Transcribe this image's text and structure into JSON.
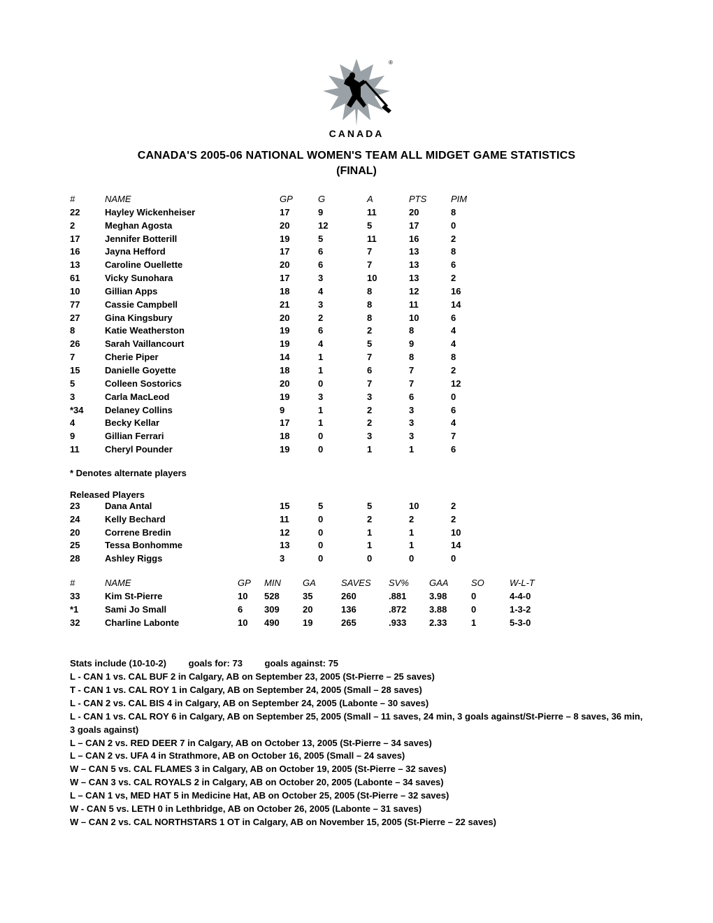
{
  "logo": {
    "maple_color": "#9aa2a7",
    "player_color": "#000000",
    "text": "CANADA",
    "text_color": "#000000"
  },
  "title_line1": "CANADA'S 2005-06 NATIONAL WOMEN'S TEAM ALL MIDGET GAME STATISTICS",
  "title_line2": "(FINAL)",
  "skater_header": {
    "num": "#",
    "name": "NAME",
    "gp": "GP",
    "g": "G",
    "a": "A",
    "pts": "PTS",
    "pim": "PIM"
  },
  "skaters": [
    {
      "num": "22",
      "name": "Hayley Wickenheiser",
      "gp": "17",
      "g": "9",
      "a": "11",
      "pts": "20",
      "pim": "8"
    },
    {
      "num": "2",
      "name": "Meghan Agosta",
      "gp": "20",
      "g": "12",
      "a": "5",
      "pts": "17",
      "pim": "0"
    },
    {
      "num": "17",
      "name": "Jennifer Botterill",
      "gp": "19",
      "g": "5",
      "a": "11",
      "pts": "16",
      "pim": "2"
    },
    {
      "num": "16",
      "name": "Jayna Hefford",
      "gp": "17",
      "g": "6",
      "a": "7",
      "pts": "13",
      "pim": "8"
    },
    {
      "num": "13",
      "name": "Caroline Ouellette",
      "gp": "20",
      "g": "6",
      "a": "7",
      "pts": "13",
      "pim": "6"
    },
    {
      "num": "61",
      "name": "Vicky Sunohara",
      "gp": "17",
      "g": "3",
      "a": "10",
      "pts": "13",
      "pim": "2"
    },
    {
      "num": "10",
      "name": "Gillian Apps",
      "gp": "18",
      "g": "4",
      "a": "8",
      "pts": "12",
      "pim": "16"
    },
    {
      "num": "77",
      "name": "Cassie Campbell",
      "gp": "21",
      "g": "3",
      "a": "8",
      "pts": "11",
      "pim": "14"
    },
    {
      "num": "27",
      "name": "Gina Kingsbury",
      "gp": "20",
      "g": "2",
      "a": "8",
      "pts": "10",
      "pim": "6"
    },
    {
      "num": "8",
      "name": "Katie Weatherston",
      "gp": "19",
      "g": "6",
      "a": "2",
      "pts": "8",
      "pim": "4"
    },
    {
      "num": "26",
      "name": "Sarah Vaillancourt",
      "gp": "19",
      "g": "4",
      "a": "5",
      "pts": "9",
      "pim": "4"
    },
    {
      "num": "7",
      "name": "Cherie Piper",
      "gp": "14",
      "g": "1",
      "a": "7",
      "pts": "8",
      "pim": "8"
    },
    {
      "num": "15",
      "name": "Danielle Goyette",
      "gp": "18",
      "g": "1",
      "a": "6",
      "pts": "7",
      "pim": "2"
    },
    {
      "num": "5",
      "name": "Colleen Sostorics",
      "gp": "20",
      "g": "0",
      "a": "7",
      "pts": "7",
      "pim": "12"
    },
    {
      "num": "3",
      "name": "Carla MacLeod",
      "gp": "19",
      "g": "3",
      "a": "3",
      "pts": "6",
      "pim": "0"
    },
    {
      "num": "*34",
      "name": "Delaney Collins",
      "gp": "9",
      "g": "1",
      "a": "2",
      "pts": "3",
      "pim": "6"
    },
    {
      "num": "4",
      "name": "Becky Kellar",
      "gp": "17",
      "g": "1",
      "a": "2",
      "pts": "3",
      "pim": "4"
    },
    {
      "num": "9",
      "name": "Gillian Ferrari",
      "gp": "18",
      "g": "0",
      "a": "3",
      "pts": "3",
      "pim": "7"
    },
    {
      "num": "11",
      "name": "Cheryl Pounder",
      "gp": "19",
      "g": "0",
      "a": "1",
      "pts": "1",
      "pim": "6"
    }
  ],
  "alternate_note": "* Denotes alternate players",
  "released_label": "Released Players",
  "released": [
    {
      "num": "23",
      "name": "Dana Antal",
      "gp": "15",
      "g": "5",
      "a": "5",
      "pts": "10",
      "pim": "2"
    },
    {
      "num": "24",
      "name": "Kelly Bechard",
      "gp": "11",
      "g": "0",
      "a": "2",
      "pts": "2",
      "pim": "2"
    },
    {
      "num": "20",
      "name": "Correne Bredin",
      "gp": "12",
      "g": "0",
      "a": "1",
      "pts": "1",
      "pim": "10"
    },
    {
      "num": "25",
      "name": "Tessa Bonhomme",
      "gp": "13",
      "g": "0",
      "a": "1",
      "pts": "1",
      "pim": "14"
    },
    {
      "num": "28",
      "name": "Ashley Riggs",
      "gp": "3",
      "g": "0",
      "a": "0",
      "pts": "0",
      "pim": "0"
    }
  ],
  "goalie_header": {
    "num": "#",
    "name": "NAME",
    "gp": "GP",
    "min": "MIN",
    "ga": "GA",
    "saves": "SAVES",
    "svp": "SV%",
    "gaa": "GAA",
    "so": "SO",
    "wlt": "W-L-T"
  },
  "goalies": [
    {
      "num": "33",
      "name": "Kim St-Pierre",
      "gp": "10",
      "min": "528",
      "ga": "35",
      "saves": "260",
      "svp": ".881",
      "gaa": "3.98",
      "so": "0",
      "wlt": "4-4-0"
    },
    {
      "num": "*1",
      "name": "Sami Jo Small",
      "gp": "6",
      "min": "309",
      "ga": "20",
      "saves": "136",
      "svp": ".872",
      "gaa": "3.88",
      "so": "0",
      "wlt": "1-3-2"
    },
    {
      "num": "32",
      "name": "Charline Labonte",
      "gp": "10",
      "min": "490",
      "ga": "19",
      "saves": "265",
      "svp": ".933",
      "gaa": "2.33",
      "so": "1",
      "wlt": "5-3-0"
    }
  ],
  "summary": {
    "record": "Stats include (10-10-2)",
    "gf": "goals for: 73",
    "ga": "goals against: 75"
  },
  "game_log": [
    "L - CAN 1 vs. CAL BUF 2 in Calgary, AB on September 23, 2005 (St-Pierre – 25 saves)",
    "T - CAN 1 vs. CAL ROY 1 in Calgary, AB on September 24, 2005 (Small – 28 saves)",
    "L - CAN 2 vs. CAL BIS 4 in Calgary, AB on September 24, 2005 (Labonte – 30 saves)",
    "L - CAN 1 vs. CAL ROY 6 in Calgary, AB on September 25, 2005 (Small – 11 saves, 24 min, 3 goals against/St-Pierre – 8 saves, 36 min, 3 goals against)",
    "L – CAN 2 vs. RED DEER 7 in Calgary, AB on October 13, 2005 (St-Pierre – 34 saves)",
    "L – CAN 2 vs. UFA 4 in Strathmore, AB on October 16, 2005 (Small – 24 saves)",
    "W – CAN 5 vs. CAL FLAMES 3 in Calgary, AB on October 19, 2005 (St-Pierre – 32 saves)",
    "W – CAN 3 vs. CAL ROYALS 2 in Calgary, AB on October 20, 2005 (Labonte – 34 saves)",
    "L – CAN 1 vs, MED HAT 5 in Medicine Hat, AB on October 25, 2005 (St-Pierre – 32 saves)",
    "W - CAN 5 vs. LETH 0 in Lethbridge, AB on October 26, 2005 (Labonte – 31 saves)",
    "W – CAN 2 vs. CAL NORTHSTARS 1 OT in Calgary, AB on November 15, 2005 (St-Pierre – 22 saves)"
  ]
}
